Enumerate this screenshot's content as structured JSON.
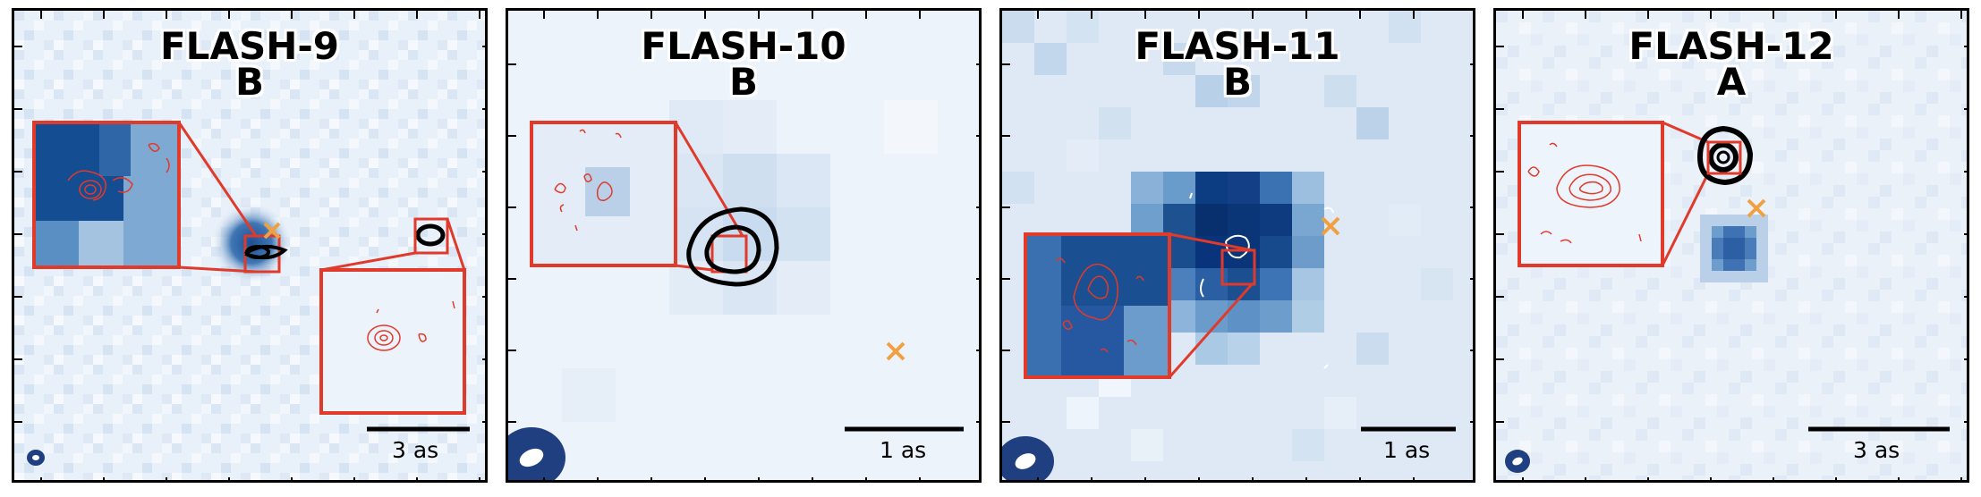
{
  "panels": [
    {
      "name": "FLASH-9",
      "component": "B",
      "scale_label": "3 as"
    },
    {
      "name": "FLASH-10",
      "component": "B",
      "scale_label": "1 as"
    },
    {
      "name": "FLASH-11",
      "component": "B",
      "scale_label": "1 as"
    },
    {
      "name": "FLASH-12",
      "component": "A",
      "scale_label": "3 as"
    }
  ],
  "colors": {
    "inset_box": "#e03a2b",
    "contours_inset": "#e03a2b",
    "contours_radio": "#000000",
    "marker": "#f0a040",
    "beam": "#1f3f80",
    "image_cmap": "Blues"
  },
  "icons": {
    "marker": "x-marker-icon",
    "beam": "beam-ellipse-icon"
  }
}
